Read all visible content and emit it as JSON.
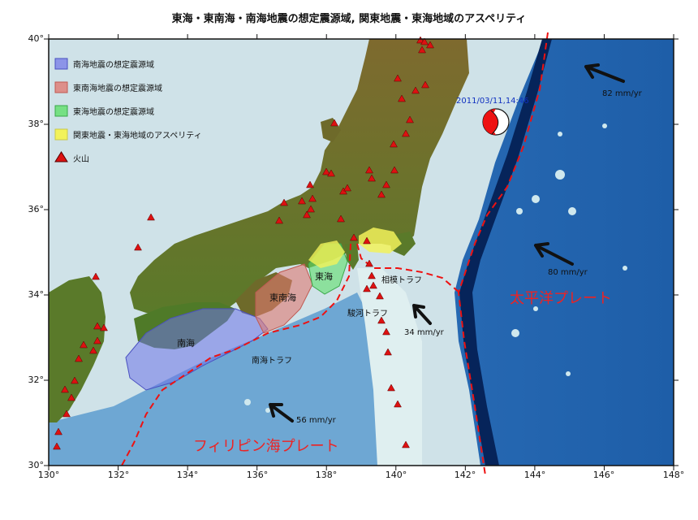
{
  "title": "東海・東南海・南海地震の想定震源域, 関東地震・東海地域のアスペリティ",
  "axes": {
    "x_ticks": [
      "130°",
      "132°",
      "134°",
      "136°",
      "138°",
      "140°",
      "142°",
      "144°",
      "146°",
      "148°"
    ],
    "y_ticks": [
      "30°",
      "32°",
      "34°",
      "36°",
      "38°",
      "40°"
    ]
  },
  "legend": [
    {
      "label": "南海地震の想定震源域",
      "color": "#6f74e8"
    },
    {
      "label": "東南海地震の想定震源域",
      "color": "#e07a72"
    },
    {
      "label": "東海地震の想定震源域",
      "color": "#5fe06a"
    },
    {
      "label": "関東地震・東海地域のアスペリティ",
      "color": "#f2f25a"
    },
    {
      "label": "火山",
      "color": "#dd1111"
    }
  ],
  "zones": {
    "nankai": "南海",
    "tonankai": "東南海",
    "tokai": "東海"
  },
  "troughs": {
    "nankai": "南海トラフ",
    "suruga": "駿河トラフ",
    "sagami": "相模トラフ"
  },
  "plates": {
    "pacific": "太平洋プレート",
    "philippine": "フィリピン海プレート"
  },
  "velocities": {
    "v82": "82 mm/yr",
    "v80": "80 mm/yr",
    "v34": "34 mm/yr",
    "v56": "56 mm/yr"
  },
  "event": {
    "label": "2011/03/11,14:46"
  },
  "colors": {
    "land": "#8a6f2c",
    "land_low": "#3f8a2a",
    "shelf": "#cde0e6",
    "deep_ocean": "#1e5ea8",
    "trench": "#06245a",
    "plate_label": "#ee2222",
    "boundary": "#ee1111"
  }
}
